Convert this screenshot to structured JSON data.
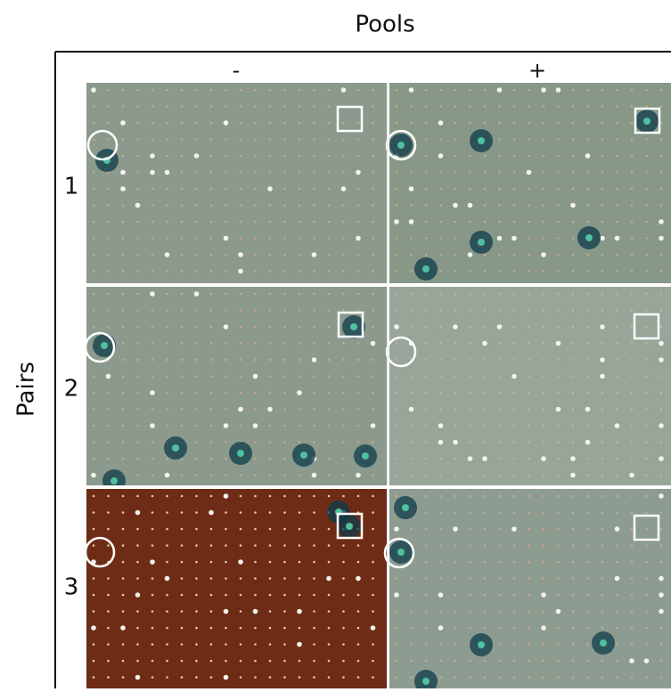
{
  "column_header": "Pools",
  "row_header": "Pairs",
  "columns": [
    "-",
    "+"
  ],
  "rows": [
    "1",
    "2",
    "3"
  ]
}
